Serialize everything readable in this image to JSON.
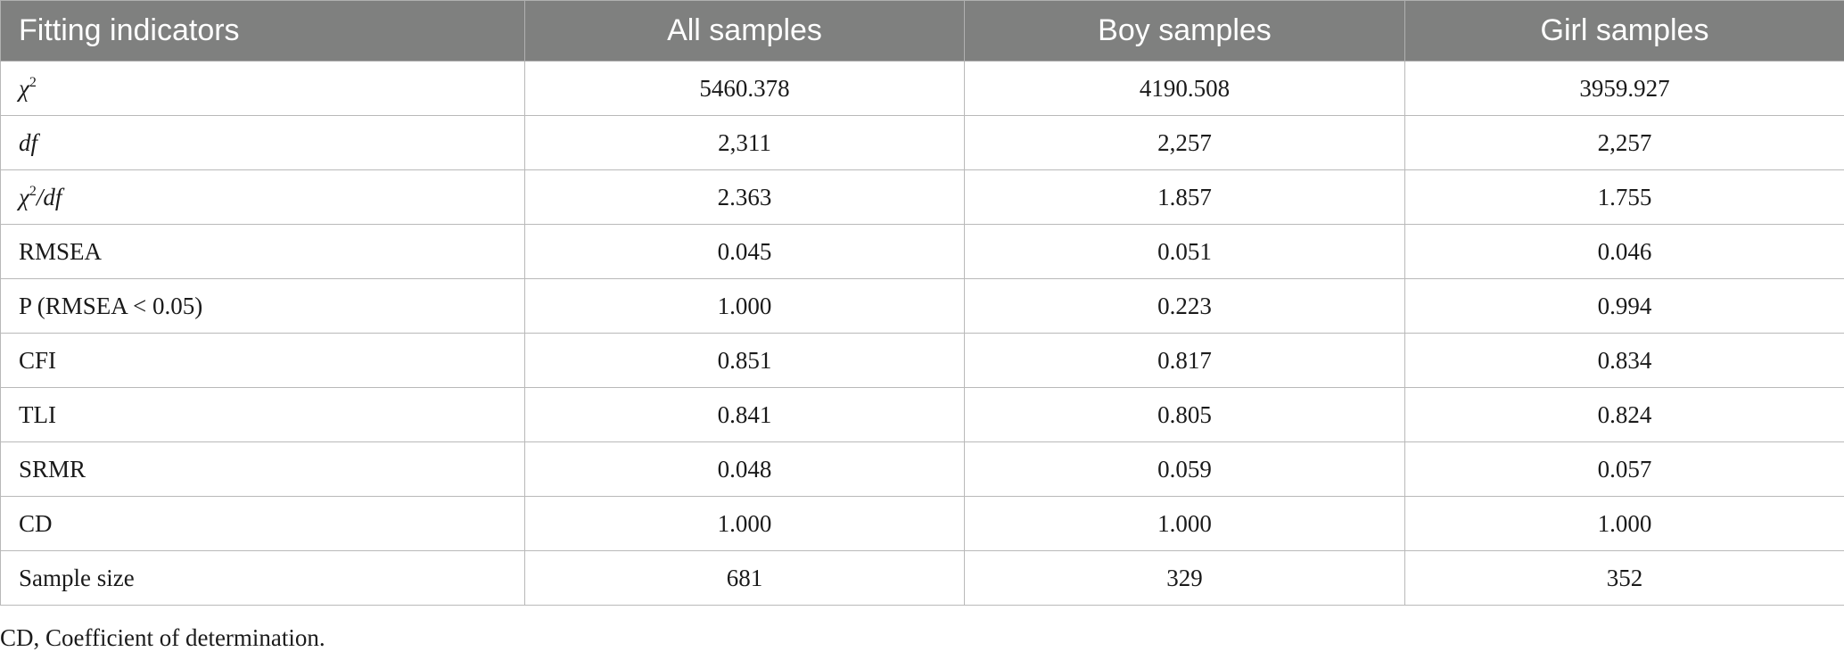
{
  "table": {
    "headers": [
      "Fitting indicators",
      "All samples",
      "Boy samples",
      "Girl samples"
    ],
    "rows": [
      {
        "label": "χ",
        "label_sup": "2",
        "values": [
          "5460.378",
          "4190.508",
          "3959.927"
        ]
      },
      {
        "label": "df",
        "values": [
          "2,311",
          "2,257",
          "2,257"
        ]
      },
      {
        "label_a": "χ",
        "label_sup": "2",
        "label_b": "/df",
        "values": [
          "2.363",
          "1.857",
          "1.755"
        ]
      },
      {
        "label": "RMSEA",
        "values": [
          "0.045",
          "0.051",
          "0.046"
        ]
      },
      {
        "label": "P (RMSEA < 0.05)",
        "values": [
          "1.000",
          "0.223",
          "0.994"
        ]
      },
      {
        "label": "CFI",
        "values": [
          "0.851",
          "0.817",
          "0.834"
        ]
      },
      {
        "label": "TLI",
        "values": [
          "0.841",
          "0.805",
          "0.824"
        ]
      },
      {
        "label": "SRMR",
        "values": [
          "0.048",
          "0.059",
          "0.057"
        ]
      },
      {
        "label": "CD",
        "values": [
          "1.000",
          "1.000",
          "1.000"
        ]
      },
      {
        "label": "Sample size",
        "values": [
          "681",
          "329",
          "352"
        ]
      }
    ]
  },
  "footnote": "CD, Coefficient of determination."
}
